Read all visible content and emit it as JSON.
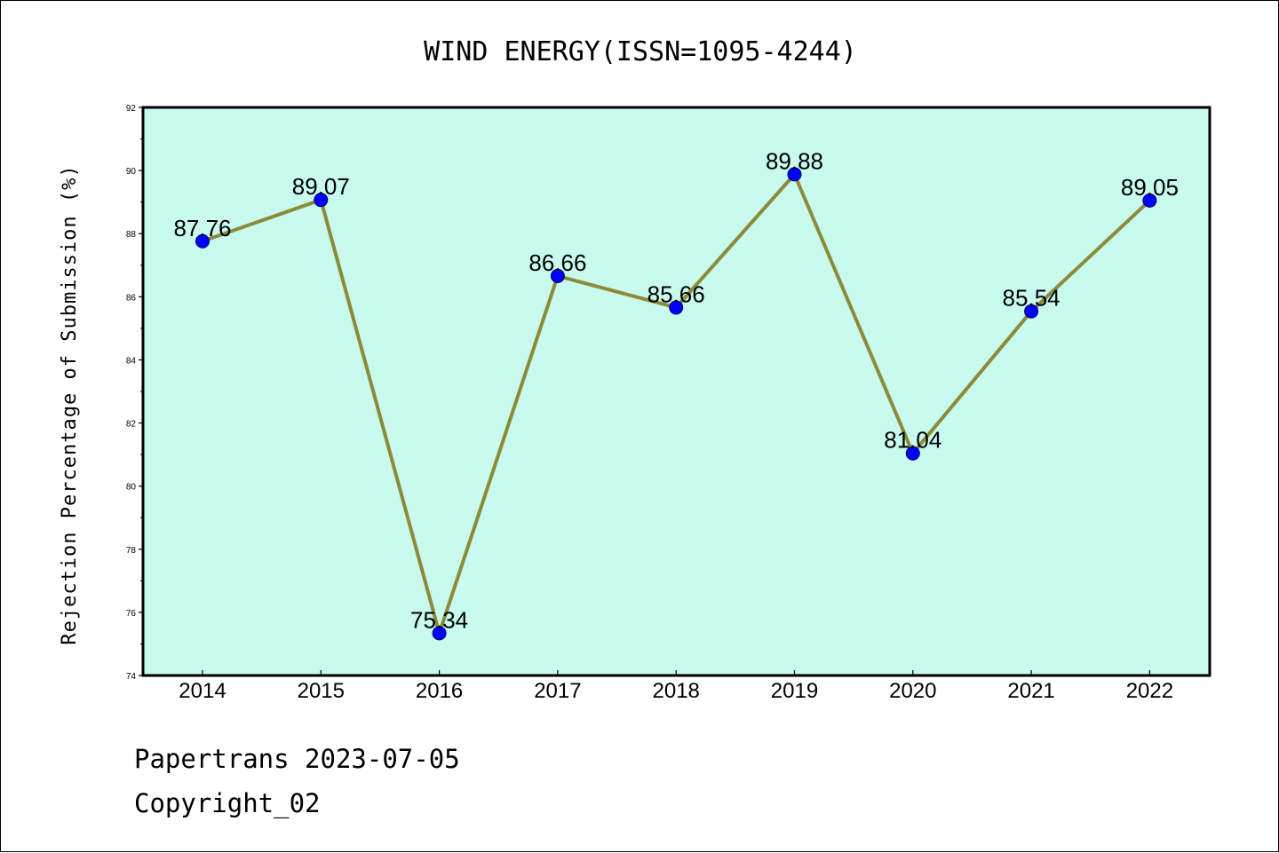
{
  "chart_data": {
    "type": "line",
    "title": "WIND ENERGY(ISSN=1095-4244)",
    "xlabel": "",
    "ylabel": "Rejection Percentage of Submission (%)",
    "categories": [
      "2014",
      "2015",
      "2016",
      "2017",
      "2018",
      "2019",
      "2020",
      "2021",
      "2022"
    ],
    "series": [
      {
        "values": [
          87.76,
          89.07,
          75.34,
          86.66,
          85.66,
          89.88,
          81.04,
          85.54,
          89.05
        ],
        "labels": [
          "87.76",
          "89.07",
          "75.34",
          "86.66",
          "85.66",
          "89.88",
          "81.04",
          "85.54",
          "89.05"
        ],
        "line_color": "#8B8B3A",
        "marker_color": "#0000FF"
      }
    ],
    "ylim": [
      74,
      92
    ],
    "yticks": [
      "74",
      "76",
      "78",
      "80",
      "82",
      "84",
      "86",
      "88",
      "90",
      "92"
    ],
    "plot_background": "#C8FAEE",
    "grid": false,
    "legend": "none"
  },
  "footer": {
    "source_line": "Papertrans 2023-07-05",
    "copyright_line": "Copyright_02"
  }
}
